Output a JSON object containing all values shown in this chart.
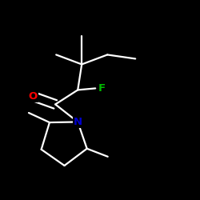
{
  "background_color": "#000000",
  "bond_color": "#ffffff",
  "atom_colors": {
    "O": "#ff0000",
    "N": "#0000cd",
    "F": "#00bb00"
  },
  "bond_width": 1.6,
  "font_size": 9.5,
  "figsize": [
    2.5,
    2.5
  ],
  "dpi": 100,
  "xlim": [
    -1.25,
    1.25
  ],
  "ylim": [
    -1.25,
    1.25
  ]
}
